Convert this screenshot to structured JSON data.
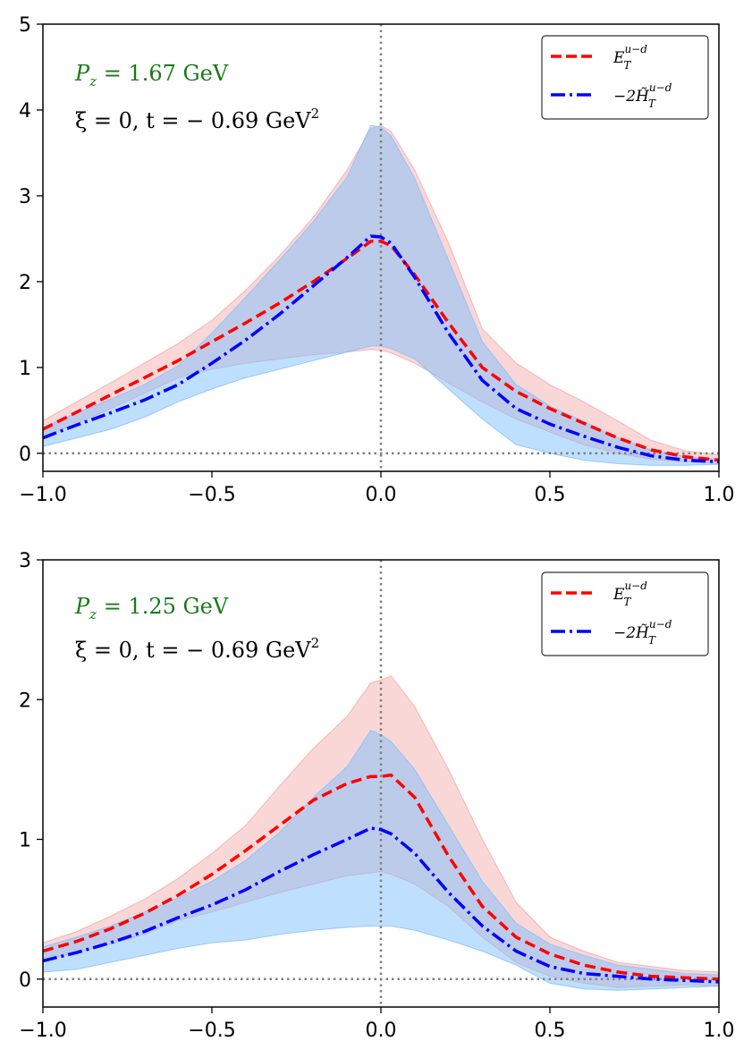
{
  "chart_data": [
    {
      "type": "line",
      "panel": "top",
      "title": "",
      "xlabel": "",
      "ylabel": "",
      "xlim": [
        -1.0,
        1.0
      ],
      "ylim": [
        -0.21,
        5.0
      ],
      "xticks": [
        -1.0,
        -0.5,
        0.0,
        0.5,
        1.0
      ],
      "xtick_labels": [
        "−1.0",
        "−0.5",
        "0.0",
        "0.5",
        "1.0"
      ],
      "yticks": [
        0,
        1,
        2,
        3,
        4,
        5
      ],
      "ytick_labels": [
        "0",
        "1",
        "2",
        "3",
        "4",
        "5"
      ],
      "grid": false,
      "reference_lines": {
        "horizontal": 0,
        "vertical": 0,
        "style": "dotted",
        "color": "#808080"
      },
      "annotations": [
        {
          "text": "P_z = 1.67 GeV",
          "color": "#1a7a1a",
          "position": "top-left"
        },
        {
          "text": "ξ = 0, t = − 0.69 GeV²",
          "color": "#000000",
          "position": "top-left"
        }
      ],
      "legend": {
        "placement": "top-right",
        "entries": [
          {
            "label": "E_T^{u−d}",
            "color": "#ff0000",
            "style": "dashed"
          },
          {
            "label": "−2 H̃_T^{u−d}",
            "color": "#0000ff",
            "style": "dashdot"
          }
        ]
      },
      "x": [
        -1.0,
        -0.9,
        -0.8,
        -0.7,
        -0.6,
        -0.5,
        -0.4,
        -0.3,
        -0.2,
        -0.1,
        -0.03,
        0.0,
        0.03,
        0.1,
        0.2,
        0.3,
        0.4,
        0.5,
        0.6,
        0.7,
        0.8,
        0.9,
        1.0
      ],
      "series": [
        {
          "name": "E_T^{u-d}",
          "color": "#ff0000",
          "style": "dashed",
          "values": [
            0.28,
            0.48,
            0.68,
            0.88,
            1.08,
            1.3,
            1.52,
            1.75,
            2.0,
            2.27,
            2.47,
            2.47,
            2.42,
            2.08,
            1.52,
            1.0,
            0.72,
            0.52,
            0.35,
            0.18,
            0.04,
            -0.04,
            -0.08
          ],
          "band_upper": [
            0.38,
            0.6,
            0.82,
            1.05,
            1.28,
            1.55,
            1.9,
            2.3,
            2.75,
            3.3,
            3.78,
            3.82,
            3.75,
            3.3,
            2.45,
            1.45,
            1.05,
            0.8,
            0.6,
            0.38,
            0.15,
            0.03,
            -0.02
          ],
          "band_lower": [
            0.18,
            0.35,
            0.52,
            0.7,
            0.88,
            0.98,
            1.05,
            1.1,
            1.15,
            1.18,
            1.21,
            1.2,
            1.17,
            1.05,
            0.82,
            0.6,
            0.4,
            0.25,
            0.1,
            0.0,
            -0.07,
            -0.1,
            -0.12
          ],
          "band_color": "#f4a6a6"
        },
        {
          "name": "-2 H~_T^{u-d}",
          "color": "#0000ff",
          "style": "dashdot",
          "values": [
            0.18,
            0.33,
            0.47,
            0.62,
            0.8,
            1.05,
            1.32,
            1.62,
            1.95,
            2.28,
            2.53,
            2.52,
            2.45,
            2.05,
            1.4,
            0.85,
            0.52,
            0.34,
            0.2,
            0.07,
            -0.03,
            -0.08,
            -0.1
          ],
          "band_upper": [
            0.3,
            0.47,
            0.63,
            0.8,
            1.02,
            1.4,
            1.82,
            2.25,
            2.7,
            3.22,
            3.82,
            3.8,
            3.7,
            3.2,
            2.25,
            1.3,
            0.8,
            0.55,
            0.37,
            0.18,
            0.04,
            -0.04,
            -0.07
          ],
          "band_lower": [
            0.08,
            0.18,
            0.28,
            0.42,
            0.6,
            0.75,
            0.88,
            0.98,
            1.08,
            1.18,
            1.25,
            1.25,
            1.22,
            1.1,
            0.75,
            0.4,
            0.1,
            0.0,
            -0.08,
            -0.12,
            -0.14,
            -0.14,
            -0.13
          ],
          "band_color": "#7fbfff"
        }
      ]
    },
    {
      "type": "line",
      "panel": "bottom",
      "title": "",
      "xlabel": "",
      "ylabel": "",
      "xlim": [
        -1.0,
        1.0
      ],
      "ylim": [
        -0.2,
        3.0
      ],
      "xticks": [
        -1.0,
        -0.5,
        0.0,
        0.5,
        1.0
      ],
      "xtick_labels": [
        "−1.0",
        "−0.5",
        "0.0",
        "0.5",
        "1.0"
      ],
      "yticks": [
        0,
        1,
        2,
        3
      ],
      "ytick_labels": [
        "0",
        "1",
        "2",
        "3"
      ],
      "grid": false,
      "reference_lines": {
        "horizontal": 0,
        "vertical": 0,
        "style": "dotted",
        "color": "#808080"
      },
      "annotations": [
        {
          "text": "P_z = 1.25 GeV",
          "color": "#1a7a1a",
          "position": "top-left"
        },
        {
          "text": "ξ = 0, t = − 0.69 GeV²",
          "color": "#000000",
          "position": "top-left"
        }
      ],
      "legend": {
        "placement": "top-right",
        "entries": [
          {
            "label": "E_T^{u−d}",
            "color": "#ff0000",
            "style": "dashed"
          },
          {
            "label": "−2 H̃_T^{u−d}",
            "color": "#0000ff",
            "style": "dashdot"
          }
        ]
      },
      "x": [
        -1.0,
        -0.9,
        -0.8,
        -0.7,
        -0.6,
        -0.5,
        -0.4,
        -0.3,
        -0.2,
        -0.1,
        -0.03,
        0.0,
        0.03,
        0.1,
        0.2,
        0.3,
        0.4,
        0.5,
        0.6,
        0.7,
        0.8,
        0.9,
        1.0
      ],
      "series": [
        {
          "name": "E_T^{u-d}",
          "color": "#ff0000",
          "style": "dashed",
          "values": [
            0.2,
            0.27,
            0.36,
            0.47,
            0.6,
            0.75,
            0.92,
            1.1,
            1.28,
            1.4,
            1.45,
            1.45,
            1.46,
            1.3,
            0.88,
            0.52,
            0.3,
            0.18,
            0.1,
            0.05,
            0.02,
            0.01,
            0.0
          ],
          "band_upper": [
            0.26,
            0.34,
            0.45,
            0.57,
            0.72,
            0.9,
            1.1,
            1.38,
            1.65,
            1.88,
            2.12,
            2.14,
            2.17,
            1.95,
            1.5,
            1.0,
            0.55,
            0.3,
            0.2,
            0.12,
            0.09,
            0.06,
            0.05
          ],
          "band_lower": [
            0.14,
            0.19,
            0.25,
            0.32,
            0.42,
            0.48,
            0.55,
            0.62,
            0.68,
            0.74,
            0.76,
            0.77,
            0.75,
            0.68,
            0.52,
            0.3,
            0.12,
            0.02,
            -0.03,
            -0.06,
            -0.05,
            -0.04,
            -0.05
          ],
          "band_color": "#f4a6a6"
        },
        {
          "name": "-2 H~_T^{u-d}",
          "color": "#0000ff",
          "style": "dashdot",
          "values": [
            0.13,
            0.19,
            0.26,
            0.34,
            0.44,
            0.53,
            0.64,
            0.77,
            0.89,
            1.0,
            1.08,
            1.07,
            1.04,
            0.9,
            0.62,
            0.38,
            0.2,
            0.09,
            0.04,
            0.02,
            0.0,
            -0.01,
            -0.02
          ],
          "band_upper": [
            0.23,
            0.3,
            0.38,
            0.48,
            0.58,
            0.7,
            0.85,
            1.05,
            1.3,
            1.52,
            1.78,
            1.75,
            1.7,
            1.5,
            1.1,
            0.7,
            0.4,
            0.25,
            0.17,
            0.1,
            0.07,
            0.04,
            0.03
          ],
          "band_lower": [
            0.05,
            0.07,
            0.12,
            0.17,
            0.22,
            0.26,
            0.28,
            0.32,
            0.35,
            0.37,
            0.38,
            0.38,
            0.38,
            0.35,
            0.28,
            0.2,
            0.1,
            -0.03,
            -0.07,
            -0.08,
            -0.07,
            -0.06,
            -0.05
          ],
          "band_color": "#7fbfff"
        }
      ]
    }
  ],
  "panels": [
    {
      "annotation_line1": {
        "symbol": "P",
        "subscript": "z",
        "rest": " = 1.67 GeV"
      },
      "annotation_line2": {
        "text": "ξ = 0,  t = − 0.69 GeV",
        "sup": "2"
      },
      "legend": {
        "entry1": {
          "base": "E",
          "sub": "T",
          "sup": "u−d"
        },
        "entry2": {
          "base": "−2H̃",
          "sub": "T",
          "sup": "u−d"
        }
      }
    },
    {
      "annotation_line1": {
        "symbol": "P",
        "subscript": "z",
        "rest": " = 1.25 GeV"
      },
      "annotation_line2": {
        "text": "ξ = 0,  t = − 0.69 GeV",
        "sup": "2"
      },
      "legend": {
        "entry1": {
          "base": "E",
          "sub": "T",
          "sup": "u−d"
        },
        "entry2": {
          "base": "−2H̃",
          "sub": "T",
          "sup": "u−d"
        }
      }
    }
  ],
  "colors": {
    "annotation_green": "#1a7a1a",
    "red_line": "#ff0000",
    "blue_line": "#0000ff",
    "red_band": "#f4a6a6",
    "blue_band": "#7fbfff",
    "reference_line": "#808080"
  }
}
